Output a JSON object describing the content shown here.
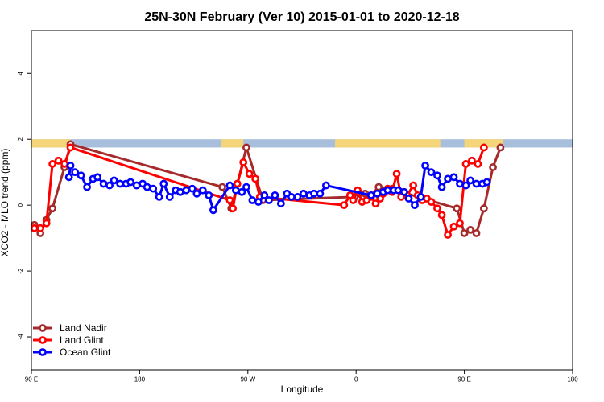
{
  "chart_data": {
    "type": "line",
    "title": "25N-30N February (Ver 10)   2015-01-01 to 2020-12-18",
    "xlabel": "Longitude",
    "ylabel": "XCO2 - MLO trend (ppm)",
    "xlim": [
      0,
      360
    ],
    "ylim": [
      -5,
      5.3
    ],
    "x_ticks": [
      {
        "value": 0,
        "label": "90 E"
      },
      {
        "value": 72,
        "label": "180"
      },
      {
        "value": 144,
        "label": "90 W"
      },
      {
        "value": 216,
        "label": "0"
      },
      {
        "value": 288,
        "label": "90 E"
      },
      {
        "value": 360,
        "label": "180"
      }
    ],
    "y_ticks": [
      {
        "value": -4,
        "label": "-4"
      },
      {
        "value": -2,
        "label": "-2"
      },
      {
        "value": 0,
        "label": "0"
      },
      {
        "value": 2,
        "label": "2"
      },
      {
        "value": 4,
        "label": "4"
      }
    ],
    "land_sea_strip": {
      "y_range": [
        1.75,
        2.0
      ],
      "land_color": "#F5D57A",
      "ocean_color": "#A7BEDC",
      "land_segments": [
        [
          0,
          26
        ],
        [
          126,
          141
        ],
        [
          202,
          272
        ],
        [
          288,
          314
        ]
      ]
    },
    "legend_position": "bottom-left",
    "series": [
      {
        "name": "Land Nadir",
        "color": "#A52A2A",
        "points": [
          [
            2,
            -0.6
          ],
          [
            6,
            -0.85
          ],
          [
            10,
            -0.45
          ],
          [
            14,
            -0.1
          ],
          [
            22,
            1.15
          ],
          [
            26,
            1.85
          ],
          [
            127,
            0.55
          ],
          [
            133,
            -0.1
          ],
          [
            143,
            1.75
          ],
          [
            154,
            0.15
          ],
          [
            215,
            0.25
          ],
          [
            218,
            0.35
          ],
          [
            222,
            0.35
          ],
          [
            226,
            0.3
          ],
          [
            231,
            0.55
          ],
          [
            240,
            0.5
          ],
          [
            246,
            0.4
          ],
          [
            283,
            -0.1
          ],
          [
            288,
            -0.85
          ],
          [
            292,
            -0.75
          ],
          [
            296,
            -0.85
          ],
          [
            301,
            -0.1
          ],
          [
            307,
            1.15
          ],
          [
            312,
            1.75
          ]
        ]
      },
      {
        "name": "Land Glint",
        "color": "#FF0000",
        "points": [
          [
            2,
            -0.7
          ],
          [
            6,
            -0.7
          ],
          [
            10,
            -0.55
          ],
          [
            14,
            1.25
          ],
          [
            18,
            1.35
          ],
          [
            22,
            1.25
          ],
          [
            26,
            1.75
          ],
          [
            132,
            0.15
          ],
          [
            134,
            -0.1
          ],
          [
            137,
            0.65
          ],
          [
            141,
            1.3
          ],
          [
            145,
            0.95
          ],
          [
            149,
            0.8
          ],
          [
            152,
            0.25
          ],
          [
            208,
            0.0
          ],
          [
            212,
            0.3
          ],
          [
            214,
            0.15
          ],
          [
            217,
            0.45
          ],
          [
            220,
            0.1
          ],
          [
            223,
            0.15
          ],
          [
            226,
            0.25
          ],
          [
            229,
            0.05
          ],
          [
            232,
            0.2
          ],
          [
            234,
            0.35
          ],
          [
            237,
            0.5
          ],
          [
            240,
            0.4
          ],
          [
            243,
            0.95
          ],
          [
            246,
            0.25
          ],
          [
            250,
            0.3
          ],
          [
            254,
            0.6
          ],
          [
            257,
            0.3
          ],
          [
            260,
            0.15
          ],
          [
            263,
            0.2
          ],
          [
            266,
            0.1
          ],
          [
            270,
            -0.1
          ],
          [
            273,
            -0.3
          ],
          [
            277,
            -0.9
          ],
          [
            281,
            -0.65
          ],
          [
            285,
            -0.55
          ],
          [
            289,
            1.25
          ],
          [
            293,
            1.35
          ],
          [
            297,
            1.25
          ],
          [
            301,
            1.75
          ]
        ]
      },
      {
        "name": "Ocean Glint",
        "color": "#0000FF",
        "points": [
          [
            26,
            1.2
          ],
          [
            25,
            0.85
          ],
          [
            29,
            1.0
          ],
          [
            33,
            0.9
          ],
          [
            37,
            0.55
          ],
          [
            41,
            0.8
          ],
          [
            44,
            0.85
          ],
          [
            48,
            0.65
          ],
          [
            52,
            0.6
          ],
          [
            55,
            0.75
          ],
          [
            59,
            0.65
          ],
          [
            63,
            0.65
          ],
          [
            66,
            0.7
          ],
          [
            70,
            0.6
          ],
          [
            74,
            0.65
          ],
          [
            77,
            0.55
          ],
          [
            81,
            0.5
          ],
          [
            85,
            0.25
          ],
          [
            88,
            0.65
          ],
          [
            92,
            0.25
          ],
          [
            96,
            0.45
          ],
          [
            99,
            0.4
          ],
          [
            103,
            0.45
          ],
          [
            107,
            0.5
          ],
          [
            110,
            0.35
          ],
          [
            114,
            0.45
          ],
          [
            118,
            0.3
          ],
          [
            121,
            -0.15
          ],
          [
            132,
            0.6
          ],
          [
            136,
            0.45
          ],
          [
            140,
            0.4
          ],
          [
            143,
            0.55
          ],
          [
            147,
            0.15
          ],
          [
            151,
            0.1
          ],
          [
            155,
            0.3
          ],
          [
            158,
            0.15
          ],
          [
            162,
            0.3
          ],
          [
            166,
            0.05
          ],
          [
            170,
            0.35
          ],
          [
            173,
            0.25
          ],
          [
            177,
            0.25
          ],
          [
            181,
            0.35
          ],
          [
            185,
            0.3
          ],
          [
            188,
            0.35
          ],
          [
            192,
            0.35
          ],
          [
            196,
            0.6
          ],
          [
            226,
            0.3
          ],
          [
            230,
            0.35
          ],
          [
            234,
            0.4
          ],
          [
            237,
            0.45
          ],
          [
            241,
            0.45
          ],
          [
            244,
            0.45
          ],
          [
            248,
            0.4
          ],
          [
            251,
            0.2
          ],
          [
            255,
            0.0
          ],
          [
            259,
            0.25
          ],
          [
            262,
            1.2
          ],
          [
            266,
            1.0
          ],
          [
            270,
            0.9
          ],
          [
            273,
            0.55
          ],
          [
            277,
            0.8
          ],
          [
            281,
            0.85
          ],
          [
            285,
            0.65
          ],
          [
            289,
            0.6
          ],
          [
            292,
            0.75
          ],
          [
            296,
            0.65
          ],
          [
            300,
            0.65
          ],
          [
            303,
            0.7
          ]
        ]
      }
    ]
  }
}
